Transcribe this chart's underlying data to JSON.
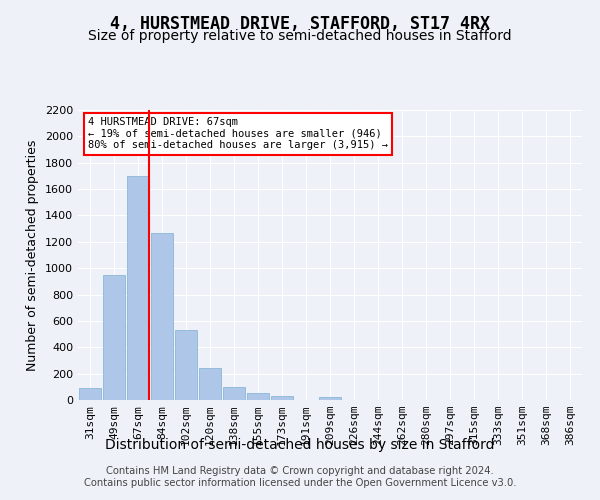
{
  "title": "4, HURSTMEAD DRIVE, STAFFORD, ST17 4RX",
  "subtitle": "Size of property relative to semi-detached houses in Stafford",
  "xlabel": "Distribution of semi-detached houses by size in Stafford",
  "ylabel": "Number of semi-detached properties",
  "footer_line1": "Contains HM Land Registry data © Crown copyright and database right 2024.",
  "footer_line2": "Contains public sector information licensed under the Open Government Licence v3.0.",
  "bins": [
    "31sqm",
    "49sqm",
    "67sqm",
    "84sqm",
    "102sqm",
    "120sqm",
    "138sqm",
    "155sqm",
    "173sqm",
    "191sqm",
    "209sqm",
    "226sqm",
    "244sqm",
    "262sqm",
    "280sqm",
    "297sqm",
    "315sqm",
    "333sqm",
    "351sqm",
    "368sqm",
    "386sqm"
  ],
  "values": [
    93,
    946,
    1700,
    1265,
    530,
    242,
    97,
    50,
    32,
    0,
    24,
    0,
    0,
    0,
    0,
    0,
    0,
    0,
    0,
    0,
    0
  ],
  "bar_color": "#aec6e8",
  "bar_edge_color": "#7fafd4",
  "annotation_box": {
    "text_lines": [
      "4 HURSTMEAD DRIVE: 67sqm",
      "← 19% of semi-detached houses are smaller (946)",
      "80% of semi-detached houses are larger (3,915) →"
    ],
    "box_color": "white",
    "box_edge_color": "red"
  },
  "vline_color": "red",
  "vline_x_index": 2,
  "ylim": [
    0,
    2200
  ],
  "yticks": [
    0,
    200,
    400,
    600,
    800,
    1000,
    1200,
    1400,
    1600,
    1800,
    2000,
    2200
  ],
  "bg_color": "#eef2f8",
  "plot_bg_color": "#eef2f8",
  "grid_color": "white",
  "title_fontsize": 12,
  "subtitle_fontsize": 10,
  "xlabel_fontsize": 10,
  "ylabel_fontsize": 9,
  "tick_fontsize": 8
}
